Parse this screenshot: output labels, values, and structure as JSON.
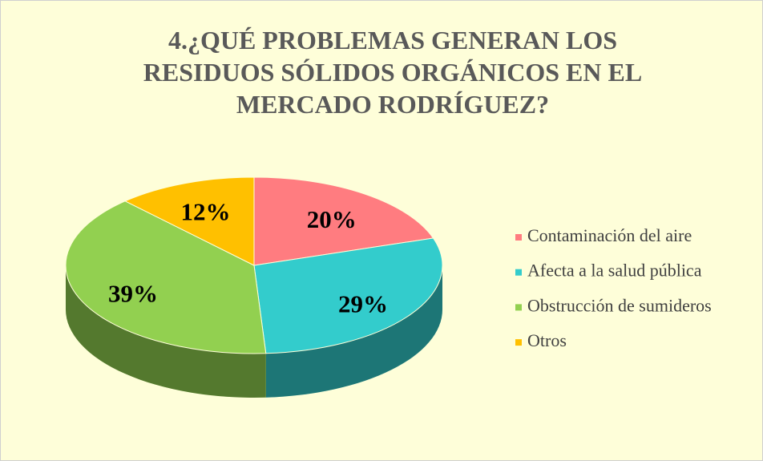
{
  "chart_data": {
    "type": "pie",
    "title": "4.¿QUÉ PROBLEMAS GENERAN LOS RESIDUOS SÓLIDOS ORGÁNICOS EN EL MERCADO RODRÍGUEZ?",
    "categories": [
      "Contaminación del aire",
      "Afecta a la salud pública",
      "Obstrucción de sumideros",
      "Otros"
    ],
    "values": [
      20,
      29,
      39,
      12
    ],
    "value_labels": [
      "20%",
      "29%",
      "39%",
      "12%"
    ],
    "colors": [
      "#ff7c80",
      "#33cccc",
      "#92d050",
      "#ffc000"
    ],
    "legend": "right"
  }
}
